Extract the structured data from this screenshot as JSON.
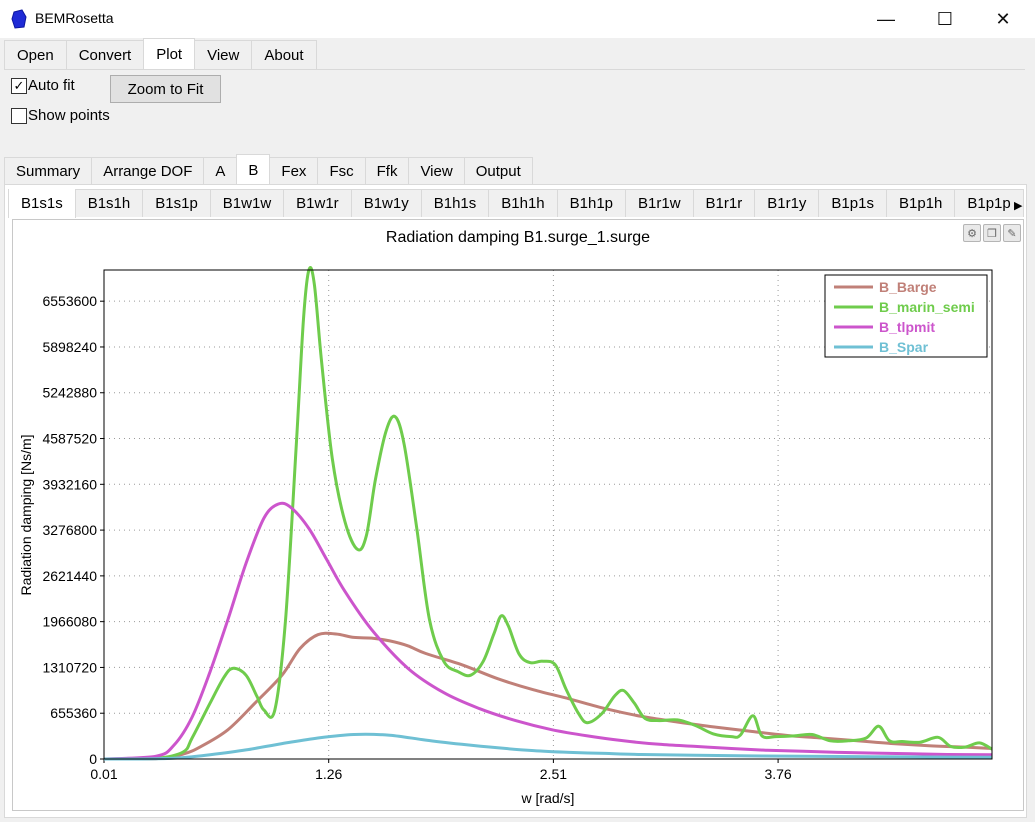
{
  "window": {
    "title": "BEMRosetta",
    "minimize": "—",
    "maximize": "☐",
    "close": "✕"
  },
  "menu_tabs": [
    "Open",
    "Convert",
    "Plot",
    "View",
    "About"
  ],
  "menu_active": "Plot",
  "options": {
    "auto_fit": "Auto fit",
    "auto_fit_checked": true,
    "show_points": "Show points",
    "show_points_checked": false,
    "zoom_to_fit": "Zoom to Fit"
  },
  "sub_tabs": [
    "Summary",
    "Arrange DOF",
    "A",
    "B",
    "Fex",
    "Fsc",
    "Ffk",
    "View",
    "Output"
  ],
  "sub_active": "B",
  "plot_tabs": [
    "B1s1s",
    "B1s1h",
    "B1s1p",
    "B1w1w",
    "B1w1r",
    "B1w1y",
    "B1h1s",
    "B1h1h",
    "B1h1p",
    "B1r1w",
    "B1r1r",
    "B1r1y",
    "B1p1s",
    "B1p1h",
    "B1p1p"
  ],
  "plot_active": "B1s1s",
  "plot_icons": [
    "settings-icon",
    "copy-icon",
    "save-image-icon"
  ],
  "chart_data": {
    "type": "line",
    "title": "Radiation damping B1.surge_1.surge",
    "xlabel": "w [rad/s]",
    "ylabel": "Radiation damping [Ns/m]",
    "xlim": [
      0.01,
      4.95
    ],
    "ylim": [
      0,
      7000000
    ],
    "xticks": [
      0.01,
      1.26,
      2.51,
      3.76
    ],
    "xtick_labels": [
      "0.01",
      "1.26",
      "2.51",
      "3.76"
    ],
    "yticks": [
      0,
      655360,
      1310720,
      1966080,
      2621440,
      3276800,
      3932160,
      4587520,
      5242880,
      5898240,
      6553600
    ],
    "ytick_labels": [
      "0",
      "655360",
      "1310720",
      "1966080",
      "2621440",
      "3276800",
      "3932160",
      "4587520",
      "5242880",
      "5898240",
      "6553600"
    ],
    "grid": true,
    "legend_position": "top-right",
    "series": [
      {
        "name": "B_Barge",
        "color": "#c08078",
        "points": [
          [
            0.01,
            0
          ],
          [
            0.3,
            5000
          ],
          [
            0.45,
            70000
          ],
          [
            0.55,
            180000
          ],
          [
            0.7,
            420000
          ],
          [
            0.85,
            800000
          ],
          [
            1.0,
            1200000
          ],
          [
            1.1,
            1580000
          ],
          [
            1.2,
            1780000
          ],
          [
            1.3,
            1790000
          ],
          [
            1.4,
            1740000
          ],
          [
            1.5,
            1730000
          ],
          [
            1.6,
            1690000
          ],
          [
            1.7,
            1620000
          ],
          [
            1.8,
            1510000
          ],
          [
            2.0,
            1350000
          ],
          [
            2.2,
            1150000
          ],
          [
            2.4,
            990000
          ],
          [
            2.6,
            860000
          ],
          [
            2.8,
            720000
          ],
          [
            3.0,
            610000
          ],
          [
            3.2,
            530000
          ],
          [
            3.4,
            460000
          ],
          [
            3.6,
            400000
          ],
          [
            3.8,
            340000
          ],
          [
            4.0,
            300000
          ],
          [
            4.2,
            260000
          ],
          [
            4.4,
            220000
          ],
          [
            4.6,
            190000
          ],
          [
            4.8,
            170000
          ],
          [
            4.95,
            150000
          ]
        ]
      },
      {
        "name": "B_marin_semi",
        "color": "#6fcc4c",
        "points": [
          [
            0.01,
            0
          ],
          [
            0.3,
            10000
          ],
          [
            0.45,
            100000
          ],
          [
            0.5,
            300000
          ],
          [
            0.6,
            800000
          ],
          [
            0.68,
            1180000
          ],
          [
            0.73,
            1300000
          ],
          [
            0.8,
            1200000
          ],
          [
            0.86,
            900000
          ],
          [
            0.9,
            700000
          ],
          [
            0.96,
            700000
          ],
          [
            1.02,
            2000000
          ],
          [
            1.08,
            4500000
          ],
          [
            1.12,
            6300000
          ],
          [
            1.15,
            7000000
          ],
          [
            1.18,
            6800000
          ],
          [
            1.22,
            5700000
          ],
          [
            1.28,
            4300000
          ],
          [
            1.35,
            3400000
          ],
          [
            1.42,
            3000000
          ],
          [
            1.47,
            3200000
          ],
          [
            1.52,
            4000000
          ],
          [
            1.58,
            4700000
          ],
          [
            1.63,
            4900000
          ],
          [
            1.68,
            4500000
          ],
          [
            1.75,
            3300000
          ],
          [
            1.82,
            2000000
          ],
          [
            1.9,
            1400000
          ],
          [
            1.98,
            1250000
          ],
          [
            2.05,
            1200000
          ],
          [
            2.12,
            1400000
          ],
          [
            2.18,
            1800000
          ],
          [
            2.22,
            2050000
          ],
          [
            2.26,
            1900000
          ],
          [
            2.32,
            1500000
          ],
          [
            2.38,
            1380000
          ],
          [
            2.45,
            1400000
          ],
          [
            2.52,
            1350000
          ],
          [
            2.58,
            1000000
          ],
          [
            2.65,
            650000
          ],
          [
            2.7,
            520000
          ],
          [
            2.78,
            650000
          ],
          [
            2.85,
            900000
          ],
          [
            2.9,
            980000
          ],
          [
            2.96,
            800000
          ],
          [
            3.02,
            580000
          ],
          [
            3.1,
            550000
          ],
          [
            3.2,
            560000
          ],
          [
            3.3,
            480000
          ],
          [
            3.4,
            360000
          ],
          [
            3.5,
            320000
          ],
          [
            3.55,
            340000
          ],
          [
            3.62,
            620000
          ],
          [
            3.67,
            330000
          ],
          [
            3.75,
            320000
          ],
          [
            3.85,
            330000
          ],
          [
            3.95,
            350000
          ],
          [
            4.05,
            260000
          ],
          [
            4.15,
            260000
          ],
          [
            4.25,
            300000
          ],
          [
            4.32,
            470000
          ],
          [
            4.38,
            260000
          ],
          [
            4.45,
            250000
          ],
          [
            4.55,
            240000
          ],
          [
            4.65,
            310000
          ],
          [
            4.72,
            180000
          ],
          [
            4.8,
            170000
          ],
          [
            4.88,
            230000
          ],
          [
            4.95,
            140000
          ]
        ]
      },
      {
        "name": "B_tlpmit",
        "color": "#cc55cc",
        "points": [
          [
            0.01,
            0
          ],
          [
            0.3,
            40000
          ],
          [
            0.4,
            200000
          ],
          [
            0.5,
            600000
          ],
          [
            0.6,
            1250000
          ],
          [
            0.7,
            2000000
          ],
          [
            0.8,
            2800000
          ],
          [
            0.9,
            3450000
          ],
          [
            0.98,
            3650000
          ],
          [
            1.05,
            3600000
          ],
          [
            1.15,
            3300000
          ],
          [
            1.25,
            2850000
          ],
          [
            1.35,
            2400000
          ],
          [
            1.5,
            1850000
          ],
          [
            1.7,
            1300000
          ],
          [
            1.9,
            950000
          ],
          [
            2.1,
            720000
          ],
          [
            2.3,
            550000
          ],
          [
            2.5,
            420000
          ],
          [
            2.7,
            330000
          ],
          [
            2.9,
            260000
          ],
          [
            3.1,
            210000
          ],
          [
            3.3,
            180000
          ],
          [
            3.5,
            150000
          ],
          [
            3.7,
            125000
          ],
          [
            3.9,
            110000
          ],
          [
            4.1,
            95000
          ],
          [
            4.3,
            85000
          ],
          [
            4.5,
            75000
          ],
          [
            4.7,
            65000
          ],
          [
            4.95,
            60000
          ]
        ]
      },
      {
        "name": "B_Spar",
        "color": "#6fc0d4",
        "points": [
          [
            0.01,
            0
          ],
          [
            0.3,
            4000
          ],
          [
            0.45,
            20000
          ],
          [
            0.6,
            60000
          ],
          [
            0.8,
            130000
          ],
          [
            1.0,
            220000
          ],
          [
            1.2,
            300000
          ],
          [
            1.4,
            350000
          ],
          [
            1.6,
            340000
          ],
          [
            1.8,
            270000
          ],
          [
            2.0,
            210000
          ],
          [
            2.2,
            160000
          ],
          [
            2.4,
            120000
          ],
          [
            2.6,
            95000
          ],
          [
            2.8,
            80000
          ],
          [
            3.0,
            65000
          ],
          [
            3.3,
            55000
          ],
          [
            3.6,
            45000
          ],
          [
            3.9,
            40000
          ],
          [
            4.2,
            35000
          ],
          [
            4.5,
            30000
          ],
          [
            4.95,
            25000
          ]
        ]
      }
    ]
  }
}
